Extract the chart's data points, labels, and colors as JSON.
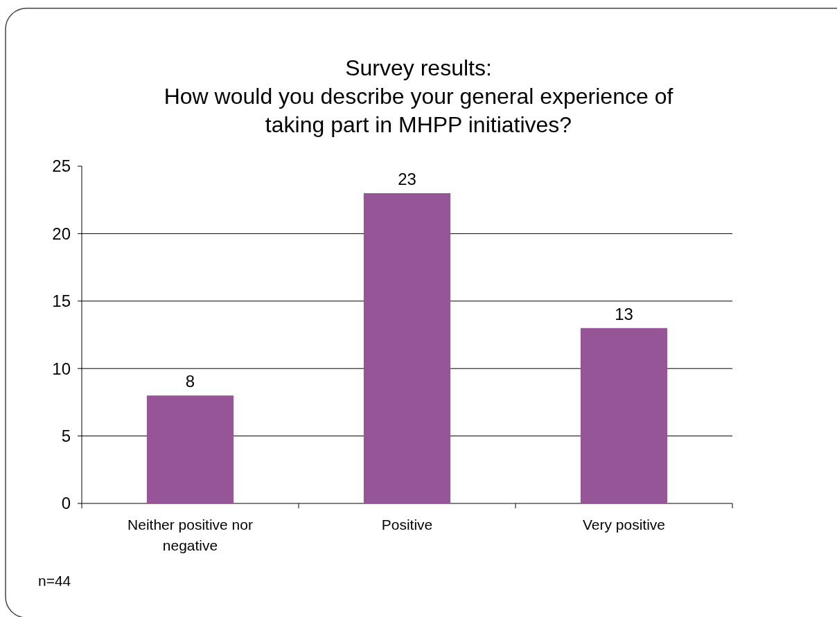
{
  "chart_data": {
    "type": "bar",
    "title": "Survey results:\nHow would you describe your general experience of\ntaking part in MHPP initiatives?",
    "categories": [
      "Neither positive nor negative",
      "Positive",
      "Very positive"
    ],
    "values": [
      8,
      23,
      13
    ],
    "color": "#955596",
    "ylim": [
      0,
      25
    ],
    "yticks": [
      0,
      5,
      10,
      15,
      20,
      25
    ],
    "grid": "y",
    "data_labels": true,
    "annotations": [
      "n=44"
    ]
  }
}
